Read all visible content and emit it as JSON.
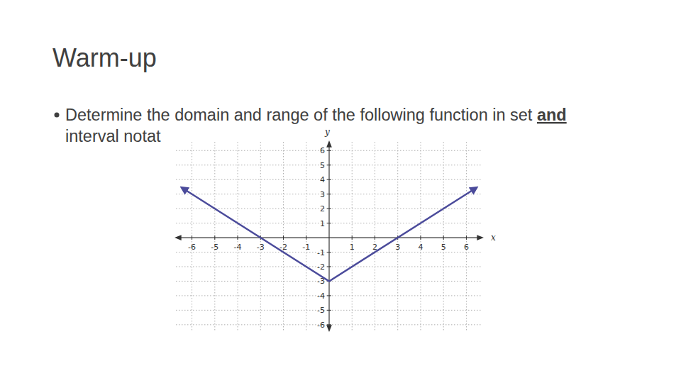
{
  "slide": {
    "heading": "Warm-up",
    "bullet": [
      "Determine the domain and range of the following function in set ",
      "and",
      "interval notat"
    ]
  },
  "chart_data": {
    "type": "line",
    "x_label": "x",
    "y_label": "y",
    "x": [
      -6.4,
      0,
      6.4
    ],
    "values": [
      3.4,
      -3,
      3.4
    ],
    "color": "#4b4b9b",
    "marker": "arrow",
    "xlim": [
      -6.7,
      6.7
    ],
    "ylim": [
      -6.4,
      6.6
    ],
    "xticks": [
      -6,
      -5,
      -4,
      -3,
      -2,
      -1,
      1,
      2,
      3,
      4,
      5,
      6
    ],
    "yticks": [
      -6,
      -5,
      -4,
      -3,
      -2,
      -1,
      1,
      2,
      3,
      4,
      5,
      6
    ],
    "grid": true
  }
}
